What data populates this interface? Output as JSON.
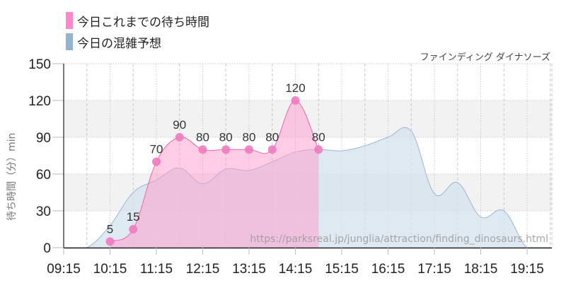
{
  "legend": {
    "items": [
      {
        "label": "今日これまでの待ち時間",
        "color": "#ff88cc"
      },
      {
        "label": "今日の混雑予想",
        "color": "#90b4d2"
      }
    ]
  },
  "attraction_name": "ファインディング ダイナソーズ",
  "y_axis_label": "待ち時間（分）min",
  "watermark": "https://parksreal.jp/junglia/attraction/finding_dinosaurs.html",
  "colors": {
    "wait_fill": "#ff99cc",
    "wait_line": "#ee66aa",
    "wait_marker": "#f07ac0",
    "forecast_fill": "#d4e2ee",
    "forecast_line": "#9ab8d4",
    "band": "#f2f2f2",
    "grid": "#c8c8c8",
    "axis": "#222222"
  },
  "chart_data": {
    "type": "area",
    "title": "ファインディング ダイナソーズ",
    "xlabel": "",
    "ylabel": "待ち時間（分）min",
    "ylim": [
      0,
      150
    ],
    "yticks": [
      0,
      30,
      60,
      90,
      120,
      150
    ],
    "xticks": [
      "09:15",
      "10:15",
      "11:15",
      "12:15",
      "13:15",
      "14:15",
      "15:15",
      "16:15",
      "17:15",
      "18:15",
      "19:15"
    ],
    "grid": true,
    "legend_position": "top-left",
    "series": [
      {
        "name": "今日これまでの待ち時間",
        "type": "area+markers",
        "x": [
          "10:15",
          "10:45",
          "11:15",
          "11:45",
          "12:15",
          "12:45",
          "13:15",
          "13:45",
          "14:15",
          "14:45"
        ],
        "values": [
          5,
          15,
          70,
          90,
          80,
          80,
          80,
          80,
          120,
          80
        ],
        "data_labels": true
      },
      {
        "name": "今日の混雑予想",
        "type": "area",
        "x": [
          "09:15",
          "09:45",
          "10:15",
          "10:45",
          "11:15",
          "11:45",
          "12:15",
          "12:45",
          "13:15",
          "13:45",
          "14:15",
          "14:45",
          "15:15",
          "15:45",
          "16:15",
          "16:45",
          "17:15",
          "17:45",
          "18:15",
          "18:45",
          "19:15",
          "19:45"
        ],
        "values": [
          0,
          0,
          18,
          45,
          55,
          65,
          52,
          64,
          63,
          70,
          78,
          80,
          79,
          83,
          90,
          95,
          44,
          53,
          25,
          30,
          0,
          0
        ]
      }
    ]
  }
}
